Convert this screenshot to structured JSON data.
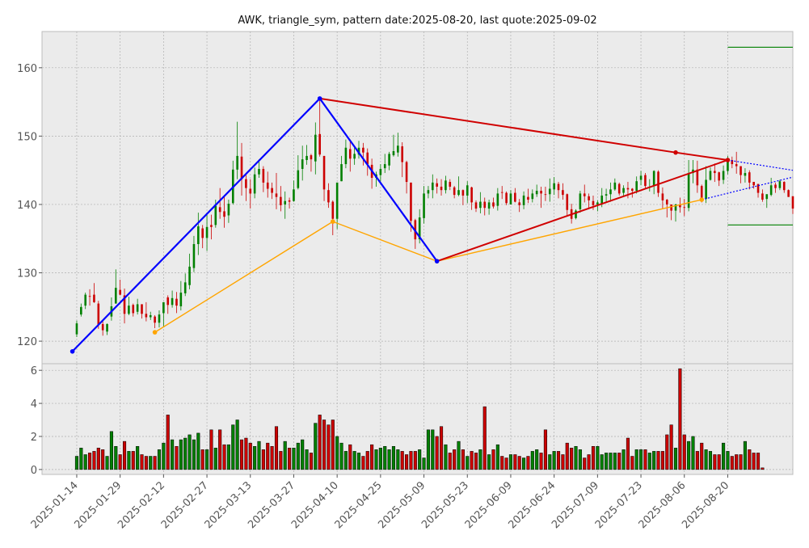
{
  "chart_data": {
    "type": "candlestick",
    "title": "AWK, triangle_sym, pattern date:2025-08-20, last quote:2025-09-02",
    "colors": {
      "up": "#008000",
      "down": "#cc0000",
      "panel_bg": "#ebebeb",
      "grid": "#b0b0b0",
      "blue": "#0000ff",
      "red": "#d00000",
      "orange": "#ffa500",
      "green": "#008000"
    },
    "price_axis": {
      "ylim": [
        116.7,
        165.3
      ],
      "ticks": [
        120,
        130,
        140,
        150,
        160
      ]
    },
    "volume_axis": {
      "ylim": [
        -0.3,
        6.4
      ],
      "ticks": [
        0,
        2,
        4,
        6
      ]
    },
    "x_ticks": [
      "2025-01-14",
      "2025-01-29",
      "2025-02-12",
      "2025-02-27",
      "2025-03-13",
      "2025-03-27",
      "2025-04-10",
      "2025-04-25",
      "2025-05-09",
      "2025-05-23",
      "2025-06-09",
      "2025-06-24",
      "2025-07-09",
      "2025-07-23",
      "2025-08-06",
      "2025-08-20"
    ],
    "x_tick_index": [
      0,
      10,
      20,
      30,
      40,
      50,
      60,
      70,
      80,
      90,
      100,
      110,
      120,
      130,
      140,
      150
    ],
    "x_range": [
      -8,
      165
    ],
    "pattern_points": {
      "blue": [
        [
          -1,
          118.5
        ],
        [
          56,
          155.5
        ],
        [
          83,
          131.7
        ]
      ],
      "orange": [
        [
          18,
          121.3
        ],
        [
          59,
          137.5
        ],
        [
          83,
          131.7
        ],
        [
          144,
          140.7
        ]
      ],
      "red_upper": [
        [
          56,
          155.5
        ],
        [
          138,
          147.6
        ],
        [
          150,
          146.5
        ]
      ],
      "red_lower": [
        [
          83,
          131.7
        ],
        [
          150,
          146.5
        ]
      ],
      "dotted_upper": [
        [
          150,
          146.5
        ],
        [
          165,
          145
        ]
      ],
      "dotted_lower": [
        [
          144,
          140.7
        ],
        [
          165,
          144
        ]
      ],
      "green_levels": [
        {
          "x": [
            150,
            165
          ],
          "y": 163
        },
        {
          "x": [
            150,
            165
          ],
          "y": 137
        }
      ]
    },
    "candles": [
      [
        0,
        121.0,
        122.6,
        120.6,
        123.0
      ],
      [
        1,
        123.9,
        125.0,
        123.6,
        125.5
      ],
      [
        2,
        125.2,
        126.8,
        124.7,
        127.1
      ],
      [
        3,
        126.6,
        126.5,
        125.2,
        127.6
      ],
      [
        4,
        126.8,
        125.7,
        125.6,
        128.5
      ],
      [
        5,
        125.5,
        122.4,
        121.8,
        125.9
      ],
      [
        6,
        122.5,
        121.6,
        120.8,
        123.0
      ],
      [
        7,
        121.4,
        122.5,
        120.9,
        122.6
      ],
      [
        8,
        123.6,
        125.1,
        123.0,
        126.4
      ],
      [
        9,
        125.5,
        127.8,
        125.5,
        130.5
      ],
      [
        10,
        127.5,
        126.8,
        126.7,
        129.0
      ],
      [
        11,
        126.7,
        124.0,
        122.6,
        127.7
      ],
      [
        12,
        124.0,
        125.2,
        123.8,
        126.5
      ],
      [
        13,
        125.3,
        124.1,
        123.6,
        125.5
      ],
      [
        14,
        124.3,
        125.4,
        123.9,
        126.2
      ],
      [
        15,
        125.4,
        124.0,
        123.3,
        125.4
      ],
      [
        16,
        124.0,
        123.5,
        122.9,
        125.7
      ],
      [
        17,
        123.5,
        123.8,
        123.1,
        124.3
      ],
      [
        18,
        123.6,
        122.7,
        121.9,
        123.8
      ],
      [
        19,
        122.7,
        123.9,
        122.0,
        124.5
      ],
      [
        20,
        124.1,
        125.7,
        122.1,
        125.7
      ],
      [
        21,
        126.4,
        125.3,
        124.0,
        126.7
      ],
      [
        22,
        125.3,
        126.3,
        124.9,
        127.4
      ],
      [
        23,
        126.2,
        125.2,
        124.1,
        127.2
      ],
      [
        24,
        125.1,
        127.1,
        124.5,
        128.8
      ],
      [
        25,
        127.0,
        128.6,
        126.6,
        129.9
      ],
      [
        26,
        128.2,
        130.9,
        127.6,
        132.8
      ],
      [
        27,
        130.7,
        134.2,
        130.1,
        135.4
      ],
      [
        28,
        134.2,
        136.8,
        132.6,
        138.8
      ],
      [
        29,
        136.5,
        135.1,
        133.6,
        137.0
      ],
      [
        30,
        135.1,
        136.7,
        133.2,
        138.8
      ],
      [
        31,
        137.0,
        136.7,
        134.9,
        138.5
      ],
      [
        32,
        137.0,
        139.8,
        136.6,
        140.7
      ],
      [
        33,
        139.6,
        138.9,
        137.9,
        142.4
      ],
      [
        34,
        139.0,
        138.2,
        136.6,
        141.3
      ],
      [
        35,
        138.4,
        140.1,
        137.3,
        140.7
      ],
      [
        36,
        140.2,
        145.1,
        140.0,
        146.4
      ],
      [
        37,
        145.1,
        147.1,
        143.7,
        152.1
      ],
      [
        38,
        147.0,
        143.7,
        141.3,
        149.0
      ],
      [
        39,
        143.7,
        142.4,
        140.5,
        144.3
      ],
      [
        40,
        142.3,
        141.6,
        139.4,
        143.7
      ],
      [
        41,
        141.6,
        144.4,
        140.9,
        145.4
      ],
      [
        42,
        144.4,
        145.2,
        143.9,
        146.6
      ],
      [
        43,
        145.2,
        143.2,
        141.8,
        145.6
      ],
      [
        44,
        143.2,
        142.3,
        141.0,
        144.8
      ],
      [
        45,
        142.4,
        141.7,
        140.8,
        143.2
      ],
      [
        46,
        141.6,
        141.1,
        139.3,
        144.6
      ],
      [
        47,
        141.1,
        139.9,
        139.0,
        142.7
      ],
      [
        48,
        140.0,
        140.5,
        137.9,
        141.9
      ],
      [
        49,
        140.6,
        140.4,
        139.4,
        141.0
      ],
      [
        50,
        140.5,
        142.2,
        140.4,
        143.5
      ],
      [
        51,
        142.4,
        145.0,
        142.2,
        147.2
      ],
      [
        52,
        145.2,
        146.6,
        143.5,
        148.6
      ],
      [
        53,
        146.5,
        147.1,
        145.8,
        148.7
      ],
      [
        54,
        147.2,
        146.6,
        144.8,
        147.4
      ],
      [
        55,
        146.3,
        150.2,
        144.4,
        152.0
      ],
      [
        56,
        150.3,
        147.3,
        147.0,
        155.4
      ],
      [
        57,
        147.1,
        142.2,
        140.5,
        147.1
      ],
      [
        58,
        142.1,
        140.3,
        139.5,
        143.1
      ],
      [
        59,
        140.4,
        137.9,
        135.5,
        140.6
      ],
      [
        60,
        137.9,
        143.2,
        136.4,
        143.2
      ],
      [
        61,
        143.4,
        145.9,
        143.4,
        147.1
      ],
      [
        62,
        145.9,
        148.3,
        145.3,
        149.5
      ],
      [
        63,
        148.1,
        146.7,
        144.8,
        149.5
      ],
      [
        64,
        146.7,
        147.4,
        145.8,
        148.3
      ],
      [
        65,
        147.3,
        148.3,
        146.7,
        149.3
      ],
      [
        66,
        148.3,
        147.6,
        145.7,
        149.0
      ],
      [
        67,
        147.6,
        145.9,
        144.2,
        148.2
      ],
      [
        68,
        145.8,
        143.9,
        142.3,
        146.7
      ],
      [
        69,
        143.9,
        144.4,
        142.6,
        144.8
      ],
      [
        70,
        144.3,
        145.2,
        143.4,
        145.9
      ],
      [
        71,
        145.3,
        145.9,
        144.6,
        147.4
      ],
      [
        72,
        145.7,
        147.4,
        145.0,
        147.7
      ],
      [
        73,
        147.2,
        147.8,
        147.0,
        150.2
      ],
      [
        74,
        147.6,
        148.6,
        147.0,
        150.5
      ],
      [
        75,
        148.5,
        146.2,
        144.0,
        149.1
      ],
      [
        76,
        146.2,
        143.3,
        141.6,
        146.4
      ],
      [
        77,
        143.2,
        137.6,
        136.0,
        143.2
      ],
      [
        78,
        137.7,
        134.9,
        133.5,
        137.9
      ],
      [
        79,
        134.9,
        138.1,
        134.3,
        139.3
      ],
      [
        80,
        138.0,
        141.6,
        137.2,
        142.7
      ],
      [
        81,
        141.6,
        142.1,
        140.9,
        142.7
      ],
      [
        82,
        142.1,
        143.2,
        140.9,
        144.4
      ],
      [
        83,
        143.1,
        142.6,
        141.6,
        143.8
      ],
      [
        84,
        142.6,
        142.1,
        141.3,
        143.7
      ],
      [
        85,
        142.1,
        143.5,
        141.6,
        144.2
      ],
      [
        86,
        143.3,
        142.6,
        142.1,
        143.7
      ],
      [
        87,
        142.5,
        141.4,
        140.9,
        142.7
      ],
      [
        88,
        141.4,
        142.1,
        141.2,
        144.1
      ],
      [
        89,
        142.1,
        141.3,
        139.9,
        142.2
      ],
      [
        90,
        141.3,
        142.8,
        140.2,
        143.4
      ],
      [
        91,
        142.5,
        140.3,
        139.2,
        142.6
      ],
      [
        92,
        140.3,
        139.4,
        138.9,
        140.6
      ],
      [
        93,
        139.5,
        140.4,
        138.7,
        141.8
      ],
      [
        94,
        140.4,
        139.5,
        138.4,
        141.0
      ],
      [
        95,
        139.4,
        140.3,
        138.5,
        140.7
      ],
      [
        96,
        140.3,
        139.7,
        139.4,
        141.0
      ],
      [
        97,
        139.8,
        141.6,
        139.1,
        142.4
      ],
      [
        98,
        141.8,
        141.7,
        140.8,
        142.7
      ],
      [
        99,
        141.7,
        140.2,
        139.9,
        141.9
      ],
      [
        100,
        140.0,
        141.6,
        140.0,
        142.1
      ],
      [
        101,
        141.7,
        140.4,
        140.3,
        142.4
      ],
      [
        102,
        140.3,
        139.9,
        138.9,
        140.8
      ],
      [
        103,
        139.9,
        141.3,
        139.3,
        141.9
      ],
      [
        104,
        141.1,
        140.7,
        140.2,
        142.3
      ],
      [
        105,
        140.8,
        141.6,
        140.3,
        142.2
      ],
      [
        106,
        141.5,
        142.0,
        141.1,
        142.9
      ],
      [
        107,
        142.0,
        141.6,
        139.5,
        142.6
      ],
      [
        108,
        141.5,
        141.4,
        140.5,
        142.6
      ],
      [
        109,
        141.5,
        142.3,
        140.4,
        143.8
      ],
      [
        110,
        142.2,
        143.1,
        141.4,
        144.0
      ],
      [
        111,
        143.0,
        142.1,
        140.9,
        143.3
      ],
      [
        112,
        142.1,
        141.4,
        140.7,
        143.1
      ],
      [
        113,
        141.5,
        139.2,
        138.3,
        141.6
      ],
      [
        114,
        139.3,
        137.9,
        137.2,
        140.1
      ],
      [
        115,
        138.0,
        139.1,
        137.8,
        139.3
      ],
      [
        116,
        139.3,
        141.6,
        138.8,
        142.0
      ],
      [
        117,
        141.6,
        141.2,
        140.3,
        142.9
      ],
      [
        118,
        141.2,
        140.6,
        139.3,
        141.6
      ],
      [
        119,
        140.5,
        139.9,
        139.2,
        141.3
      ],
      [
        120,
        140.0,
        140.3,
        139.0,
        140.6
      ],
      [
        121,
        140.1,
        141.3,
        139.6,
        142.4
      ],
      [
        122,
        141.3,
        141.5,
        140.3,
        142.3
      ],
      [
        123,
        141.5,
        142.2,
        140.4,
        143.2
      ],
      [
        124,
        142.2,
        143.2,
        142.0,
        143.8
      ],
      [
        125,
        143.0,
        141.6,
        141.3,
        143.2
      ],
      [
        126,
        141.7,
        142.4,
        141.1,
        142.8
      ],
      [
        127,
        142.4,
        142.2,
        140.9,
        143.3
      ],
      [
        128,
        142.3,
        142.0,
        141.0,
        142.4
      ],
      [
        129,
        142.0,
        143.4,
        141.6,
        144.1
      ],
      [
        130,
        143.6,
        144.2,
        142.8,
        144.9
      ],
      [
        131,
        144.3,
        142.7,
        142.3,
        144.6
      ],
      [
        132,
        142.6,
        142.6,
        141.9,
        143.7
      ],
      [
        133,
        142.7,
        144.9,
        141.5,
        145.0
      ],
      [
        134,
        144.8,
        141.7,
        141.1,
        145.0
      ],
      [
        135,
        141.6,
        140.6,
        139.4,
        142.5
      ],
      [
        136,
        140.7,
        140.0,
        138.1,
        140.8
      ],
      [
        137,
        140.0,
        139.1,
        137.7,
        140.0
      ],
      [
        138,
        139.1,
        140.0,
        137.5,
        140.1
      ],
      [
        139,
        140.0,
        139.6,
        138.8,
        141.0
      ],
      [
        140,
        139.6,
        139.5,
        138.3,
        140.8
      ],
      [
        141,
        139.5,
        144.6,
        139.0,
        146.5
      ],
      [
        142,
        144.6,
        145.1,
        143.1,
        146.5
      ],
      [
        143,
        145.1,
        142.8,
        141.7,
        146.4
      ],
      [
        144,
        142.7,
        140.7,
        140.3,
        142.9
      ],
      [
        145,
        140.8,
        143.6,
        140.2,
        145.6
      ],
      [
        146,
        143.6,
        144.9,
        143.5,
        145.4
      ],
      [
        147,
        144.9,
        144.6,
        143.3,
        146.0
      ],
      [
        148,
        144.7,
        143.5,
        142.7,
        144.8
      ],
      [
        149,
        143.6,
        144.9,
        143.0,
        145.7
      ],
      [
        150,
        144.9,
        146.6,
        144.4,
        147.1
      ],
      [
        151,
        146.5,
        145.9,
        145.3,
        147.0
      ],
      [
        152,
        145.9,
        145.6,
        144.5,
        147.7
      ],
      [
        153,
        145.6,
        144.3,
        143.1,
        145.6
      ],
      [
        154,
        144.2,
        144.6,
        143.2,
        145.3
      ],
      [
        155,
        144.7,
        143.2,
        142.2,
        145.0
      ],
      [
        156,
        143.3,
        142.8,
        142.3,
        143.3
      ],
      [
        157,
        143.0,
        141.7,
        141.0,
        143.0
      ],
      [
        158,
        141.6,
        140.7,
        140.4,
        142.2
      ],
      [
        159,
        140.8,
        141.5,
        139.5,
        141.5
      ],
      [
        160,
        141.4,
        142.8,
        141.2,
        143.9
      ],
      [
        161,
        142.9,
        142.4,
        141.7,
        143.2
      ],
      [
        162,
        142.4,
        143.4,
        142.1,
        143.6
      ],
      [
        163,
        143.3,
        142.1,
        141.7,
        143.4
      ],
      [
        164,
        142.1,
        141.1,
        141.1,
        142.2
      ],
      [
        165,
        141.2,
        139.4,
        138.6,
        141.2
      ]
    ],
    "volumes": [
      0.8,
      1.3,
      0.9,
      1.0,
      1.1,
      1.3,
      1.2,
      0.8,
      2.3,
      1.4,
      0.9,
      1.7,
      1.1,
      1.1,
      1.4,
      0.9,
      0.8,
      0.8,
      0.8,
      1.2,
      1.6,
      3.3,
      1.8,
      1.4,
      1.8,
      1.9,
      2.1,
      1.8,
      2.2,
      1.2,
      1.2,
      2.4,
      1.3,
      2.4,
      1.5,
      1.5,
      2.7,
      3.0,
      1.8,
      1.9,
      1.6,
      1.4,
      1.7,
      1.2,
      1.6,
      1.4,
      2.6,
      1.1,
      1.7,
      1.3,
      1.3,
      1.6,
      1.8,
      1.2,
      1.0,
      2.8,
      3.3,
      3.0,
      2.7,
      3.0,
      2.0,
      1.6,
      1.1,
      1.5,
      1.1,
      1.0,
      0.8,
      1.1,
      1.5,
      1.2,
      1.3,
      1.4,
      1.2,
      1.4,
      1.2,
      1.1,
      0.9,
      1.1,
      1.1,
      1.2,
      0.7,
      2.4,
      2.4,
      2.0,
      2.6,
      1.5,
      1.0,
      1.2,
      1.7,
      1.2,
      0.8,
      1.1,
      1.0,
      1.2,
      3.8,
      0.9,
      1.2,
      1.5,
      0.8,
      0.7,
      0.9,
      0.9,
      0.8,
      0.7,
      0.8,
      1.1,
      1.2,
      1.0,
      2.4,
      0.9,
      1.1,
      1.1,
      0.9,
      1.6,
      1.3,
      1.4,
      1.2,
      0.7,
      0.9,
      1.4,
      1.4,
      0.9,
      1.0,
      1.0,
      1.0,
      1.0,
      1.2,
      1.9,
      0.8,
      1.2,
      1.2,
      1.2,
      1.0,
      1.1,
      1.1,
      1.1,
      2.1,
      2.7,
      1.3,
      6.1,
      2.1,
      1.7,
      2.0,
      1.1,
      1.6,
      1.2,
      1.1,
      0.9,
      0.9,
      1.6,
      1.1,
      0.8,
      0.9,
      0.9,
      1.7,
      1.2,
      1.0,
      1.0,
      0.1
    ]
  }
}
